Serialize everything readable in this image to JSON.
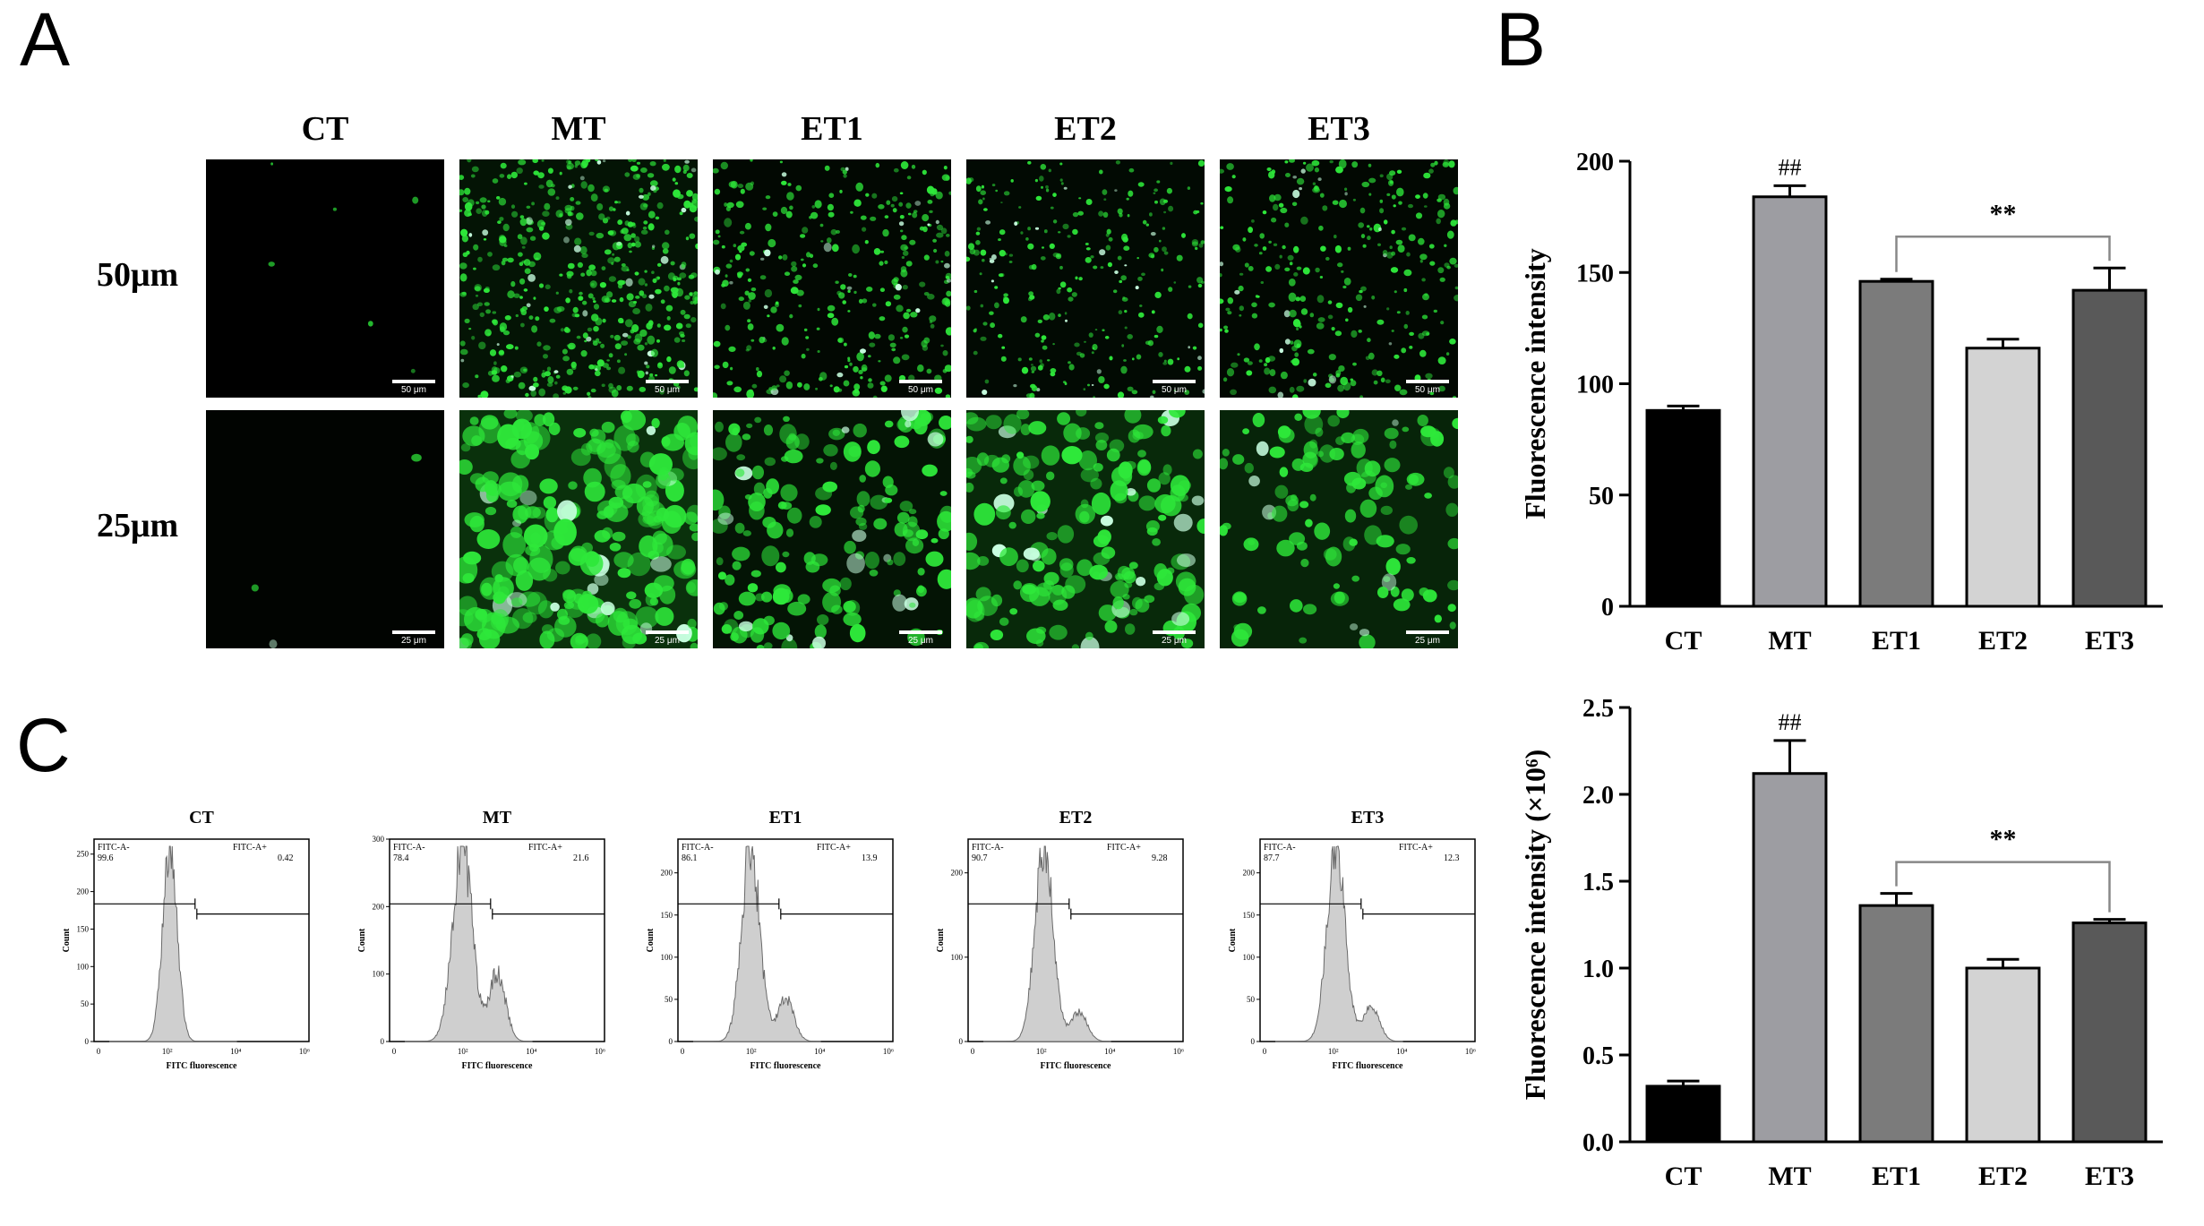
{
  "panel_labels": {
    "a": "A",
    "b": "B",
    "c": "C"
  },
  "panel_a": {
    "columns": [
      "CT",
      "MT",
      "ET1",
      "ET2",
      "ET3"
    ],
    "rows": [
      {
        "label": "50μm",
        "scale_text": "50 μm"
      },
      {
        "label": "25μm",
        "scale_text": "25 μm"
      }
    ],
    "fluorescence_color": "#2ee83a"
  },
  "panel_c": {
    "axis_y_label": "Count",
    "axis_x_label": "FITC fluorescence",
    "gate_neg_label": "FITC-A-",
    "gate_pos_label": "FITC-A+",
    "x_ticks": [
      "0",
      "10²",
      "10⁴",
      "10⁶"
    ],
    "histograms": [
      {
        "title": "CT",
        "neg": "99.6",
        "pos": "0.42",
        "y_ticks": [
          0,
          50,
          100,
          150,
          200,
          250
        ],
        "y_max": 270
      },
      {
        "title": "MT",
        "neg": "78.4",
        "pos": "21.6",
        "y_ticks": [
          0,
          100,
          200,
          300
        ],
        "y_max": 300
      },
      {
        "title": "ET1",
        "neg": "86.1",
        "pos": "13.9",
        "y_ticks": [
          0,
          50,
          100,
          150,
          200
        ],
        "y_max": 240
      },
      {
        "title": "ET2",
        "neg": "90.7",
        "pos": "9.28",
        "y_ticks": [
          0,
          100,
          200
        ],
        "y_max": 240
      },
      {
        "title": "ET3",
        "neg": "87.7",
        "pos": "12.3",
        "y_ticks": [
          0,
          50,
          100,
          150,
          200
        ],
        "y_max": 240
      }
    ]
  },
  "chart_data": [
    {
      "type": "bar",
      "panel": "B",
      "title": "",
      "xlabel": "",
      "ylabel": "Fluorescence intensity",
      "categories": [
        "CT",
        "MT",
        "ET1",
        "ET2",
        "ET3"
      ],
      "values": [
        88,
        184,
        146,
        116,
        142
      ],
      "errors": [
        2,
        5,
        1,
        4,
        10
      ],
      "colors": [
        "#000000",
        "#9d9da2",
        "#7b7b7b",
        "#d3d3d3",
        "#595959"
      ],
      "ylim": [
        0,
        200
      ],
      "yticks": [
        0,
        50,
        100,
        150,
        200
      ],
      "annotations": [
        {
          "text": "##",
          "category": "MT"
        },
        {
          "text": "**",
          "bracket_from": "ET1",
          "bracket_to": "ET3"
        }
      ]
    },
    {
      "type": "bar",
      "panel": "B-lower",
      "title": "",
      "xlabel": "",
      "ylabel": "Fluorescence intensity (×10⁶)",
      "categories": [
        "CT",
        "MT",
        "ET1",
        "ET2",
        "ET3"
      ],
      "values": [
        0.32,
        2.12,
        1.36,
        1.0,
        1.26
      ],
      "errors": [
        0.03,
        0.19,
        0.07,
        0.05,
        0.02
      ],
      "colors": [
        "#000000",
        "#9d9da2",
        "#7b7b7b",
        "#d3d3d3",
        "#595959"
      ],
      "ylim": [
        0,
        2.5
      ],
      "yticks": [
        "0.0",
        "0.5",
        "1.0",
        "1.5",
        "2.0",
        "2.5"
      ],
      "annotations": [
        {
          "text": "##",
          "category": "MT"
        },
        {
          "text": "**",
          "bracket_from": "ET1",
          "bracket_to": "ET3"
        }
      ]
    }
  ]
}
